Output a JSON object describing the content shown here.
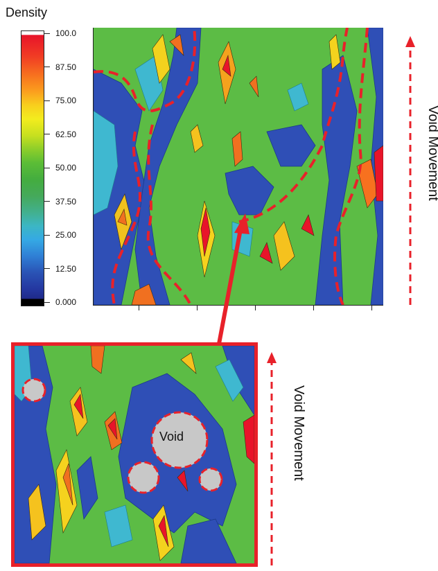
{
  "legend": {
    "title": "Density",
    "ticks": [
      "100.0",
      "87.50",
      "75.00",
      "62.50",
      "50.00",
      "37.50",
      "25.00",
      "12.50",
      "0.000"
    ]
  },
  "labels": {
    "void_movement_top": "Void Movement",
    "void_movement_bottom": "Void Movement",
    "void": "Void"
  },
  "colors": {
    "annotation_red": "#e8212a",
    "void_fill": "#c8c8c8",
    "low_density": "#2a44b0",
    "high_density": "#e8142a"
  }
}
